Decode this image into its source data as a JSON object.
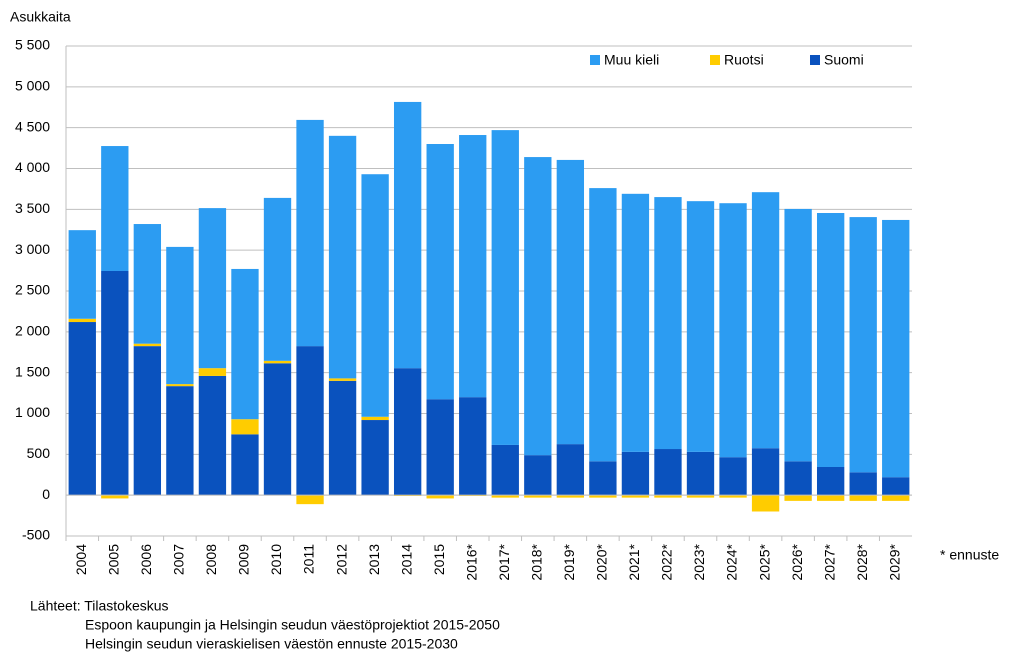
{
  "chart_data": {
    "type": "stacked-bar",
    "y_label": "Asukkaita",
    "categories": [
      "2004",
      "2005",
      "2006",
      "2007",
      "2008",
      "2009",
      "2010",
      "2011",
      "2012",
      "2013",
      "2014",
      "2015",
      "2016*",
      "2017*",
      "2018*",
      "2019*",
      "2020*",
      "2021*",
      "2022*",
      "2023*",
      "2024*",
      "2025*",
      "2026*",
      "2027*",
      "2028*",
      "2029*"
    ],
    "series": [
      {
        "name": "Suomi",
        "color": "#0a52be",
        "values": [
          2120,
          2745,
          1825,
          1335,
          1460,
          745,
          1615,
          1825,
          1400,
          920,
          1555,
          1175,
          1200,
          615,
          490,
          625,
          415,
          530,
          565,
          530,
          465,
          575,
          415,
          345,
          280,
          220
        ]
      },
      {
        "name": "Ruotsi",
        "color": "#ffcc00",
        "values": [
          40,
          -40,
          30,
          25,
          95,
          185,
          30,
          -110,
          30,
          40,
          -10,
          -40,
          -10,
          -30,
          -30,
          -30,
          -30,
          -30,
          -30,
          -30,
          -30,
          -200,
          -70,
          -70,
          -70,
          -70
        ]
      },
      {
        "name": "Muu kieli",
        "color": "#2c9cf2",
        "values": [
          1085,
          1530,
          1465,
          1680,
          1960,
          1840,
          1995,
          2770,
          2970,
          2970,
          3260,
          3125,
          3210,
          3855,
          3650,
          3480,
          3345,
          3160,
          3085,
          3070,
          3110,
          3135,
          3090,
          3110,
          3125,
          3150
        ]
      }
    ],
    "ylim": [
      -500,
      5500
    ],
    "yticks": [
      -500,
      0,
      500,
      {
        "value": 1000,
        "label": "1 000"
      },
      {
        "value": 1500,
        "label": "1 500"
      },
      {
        "value": 2000,
        "label": "2 000"
      },
      {
        "value": 2500,
        "label": "2 500"
      },
      {
        "value": 3000,
        "label": "3 000"
      },
      {
        "value": 3500,
        "label": "3 500"
      },
      {
        "value": 4000,
        "label": "4 000"
      },
      {
        "value": 4500,
        "label": "4 500"
      },
      {
        "value": 5000,
        "label": "5 000"
      },
      {
        "value": 5500,
        "label": "5 500"
      }
    ],
    "grid": true,
    "legend": "top-right",
    "annotation": "* ennuste",
    "source": [
      "Lähteet: Tilastokeskus",
      "Espoon kaupungin ja Helsingin seudun väestöprojektiot 2015-2050",
      "Helsingin seudun vieraskielisen väestön ennuste 2015-2030"
    ]
  }
}
